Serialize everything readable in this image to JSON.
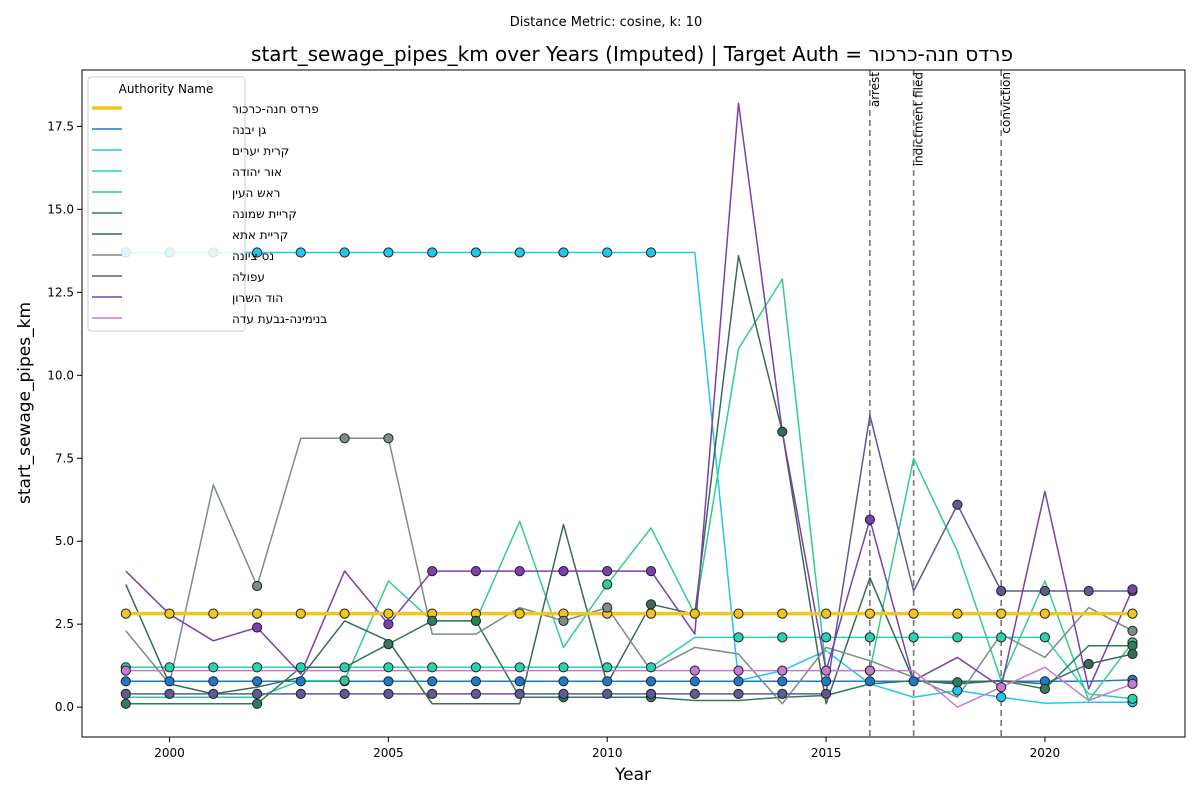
{
  "suptitle": "Distance Metric: cosine, k: 10",
  "chart_data": {
    "type": "line",
    "title": "start_sewage_pipes_km over Years (Imputed) | Target Auth = פרדס חנה-כרכור",
    "xlabel": "Year",
    "ylabel": "start_sewage_pipes_km",
    "xlim": [
      1998,
      2023.2
    ],
    "ylim": [
      -0.9,
      19.2
    ],
    "x_ticks": [
      2000,
      2005,
      2010,
      2015,
      2020
    ],
    "y_ticks": [
      0.0,
      2.5,
      5.0,
      7.5,
      10.0,
      12.5,
      15.0,
      17.5
    ],
    "y_tick_labels": [
      "0.0",
      "2.5",
      "5.0",
      "7.5",
      "10.0",
      "12.5",
      "15.0",
      "17.5"
    ],
    "grid": false,
    "legend_title": "Authority Name",
    "legend_position": "upper-left",
    "events": [
      {
        "year": 2016,
        "label": "arrest"
      },
      {
        "year": 2017,
        "label": "indictment filed"
      },
      {
        "year": 2019,
        "label": "conviction"
      }
    ],
    "x": [
      1999,
      2000,
      2001,
      2002,
      2003,
      2004,
      2005,
      2006,
      2007,
      2008,
      2009,
      2010,
      2011,
      2012,
      2013,
      2014,
      2015,
      2016,
      2017,
      2018,
      2019,
      2020,
      2021,
      2022
    ],
    "series": [
      {
        "name": "פרדס חנה-כרכור",
        "color": "#f2c61d",
        "width": 3.5,
        "target": true,
        "values": [
          2.82,
          2.82,
          2.82,
          2.82,
          2.82,
          2.82,
          2.82,
          2.82,
          2.82,
          2.82,
          2.82,
          2.82,
          2.82,
          2.82,
          2.82,
          2.82,
          2.82,
          2.82,
          2.82,
          2.82,
          2.82,
          2.82,
          2.82,
          2.82
        ],
        "markers": [
          1999,
          2000,
          2001,
          2002,
          2003,
          2004,
          2005,
          2006,
          2007,
          2008,
          2009,
          2010,
          2011,
          2012,
          2013,
          2014,
          2015,
          2016,
          2017,
          2018,
          2019,
          2020,
          2022
        ]
      },
      {
        "name": "גן יבנה",
        "color": "#1f78c8",
        "width": 1.5,
        "values": [
          0.78,
          0.78,
          0.78,
          0.78,
          0.78,
          0.78,
          0.78,
          0.78,
          0.78,
          0.78,
          0.78,
          0.78,
          0.78,
          0.78,
          0.78,
          0.78,
          0.78,
          0.78,
          0.78,
          0.78,
          0.78,
          0.78,
          0.78,
          0.82
        ],
        "markers": [
          1999,
          2000,
          2001,
          2002,
          2003,
          2004,
          2005,
          2006,
          2007,
          2008,
          2009,
          2010,
          2011,
          2012,
          2013,
          2014,
          2015,
          2016,
          2017,
          2020,
          2022
        ]
      },
      {
        "name": "קרית יערים",
        "color": "#22c7ef",
        "width": 1.5,
        "values": [
          13.7,
          13.7,
          13.7,
          13.7,
          13.7,
          13.7,
          13.7,
          13.7,
          13.7,
          13.7,
          13.7,
          13.7,
          13.7,
          13.7,
          0.8,
          1.1,
          1.7,
          0.7,
          0.3,
          0.5,
          0.3,
          0.12,
          0.15,
          0.15
        ],
        "markers": [
          1999,
          2000,
          2001,
          2002,
          2003,
          2004,
          2005,
          2006,
          2007,
          2008,
          2009,
          2010,
          2011,
          2018,
          2019,
          2022
        ]
      },
      {
        "name": "אור יהודה",
        "color": "#2bd1b3",
        "width": 1.5,
        "values": [
          1.2,
          1.2,
          1.2,
          1.2,
          1.2,
          1.2,
          1.2,
          1.2,
          1.2,
          1.2,
          1.2,
          1.2,
          1.2,
          2.1,
          2.1,
          2.1,
          2.1,
          2.1,
          2.1,
          2.1,
          2.1,
          2.1,
          0.4,
          0.25
        ],
        "markers": [
          1999,
          2000,
          2001,
          2002,
          2003,
          2004,
          2005,
          2006,
          2007,
          2008,
          2009,
          2010,
          2011,
          2013,
          2014,
          2015,
          2016,
          2017,
          2018,
          2019,
          2020,
          2022
        ]
      },
      {
        "name": "ראש העין",
        "color": "#33cc8c",
        "width": 1.5,
        "values": [
          0.3,
          0.3,
          0.3,
          0.3,
          0.8,
          0.8,
          3.8,
          2.6,
          2.6,
          5.6,
          1.8,
          3.7,
          5.4,
          2.8,
          10.8,
          12.9,
          1.1,
          1.1,
          7.5,
          4.7,
          0.8,
          3.8,
          0.2,
          1.95
        ],
        "markers": [
          2004,
          2010,
          2016,
          2022
        ]
      },
      {
        "name": "קריית שמונה",
        "color": "#2e7d5e",
        "width": 1.5,
        "values": [
          0.1,
          0.1,
          0.1,
          0.1,
          1.2,
          1.2,
          1.9,
          2.6,
          2.6,
          0.3,
          0.3,
          0.3,
          0.3,
          0.2,
          0.2,
          0.3,
          0.35,
          0.7,
          0.8,
          0.75,
          0.8,
          0.55,
          1.85,
          1.85
        ],
        "markers": [
          1999,
          2002,
          2005,
          2006,
          2007,
          2009,
          2011,
          2018,
          2020,
          2022
        ]
      },
      {
        "name": "קריית אתא",
        "color": "#3a6a55",
        "width": 1.5,
        "values": [
          3.7,
          0.7,
          0.4,
          0.6,
          0.9,
          2.6,
          2.0,
          0.1,
          0.1,
          0.1,
          5.5,
          0.7,
          3.1,
          2.8,
          13.6,
          8.3,
          0.1,
          3.9,
          0.8,
          0.7,
          0.8,
          0.7,
          1.3,
          1.6
        ],
        "markers": [
          2011,
          2014,
          2021,
          2022
        ]
      },
      {
        "name": "נס ציונה",
        "color": "#7c8c87",
        "width": 1.5,
        "values": [
          2.3,
          0.7,
          6.7,
          3.65,
          8.1,
          8.1,
          8.1,
          2.2,
          2.2,
          3.0,
          2.6,
          3.0,
          1.1,
          1.8,
          1.6,
          0.1,
          1.8,
          1.4,
          0.9,
          0.3,
          2.2,
          1.5,
          3.0,
          2.3
        ],
        "markers": [
          2002,
          2004,
          2005,
          2009,
          2010,
          2022
        ]
      },
      {
        "name": "עפולה",
        "color": "#5e5b94",
        "width": 1.5,
        "values": [
          0.4,
          0.4,
          0.4,
          0.4,
          0.4,
          0.4,
          0.4,
          0.4,
          0.4,
          0.4,
          0.4,
          0.4,
          0.4,
          0.4,
          0.4,
          0.4,
          0.4,
          8.8,
          3.5,
          6.1,
          3.5,
          3.5,
          3.5,
          3.5
        ],
        "markers": [
          1999,
          2000,
          2001,
          2002,
          2003,
          2004,
          2005,
          2006,
          2007,
          2008,
          2009,
          2010,
          2011,
          2012,
          2013,
          2014,
          2015,
          2018,
          2019,
          2020,
          2021,
          2022
        ]
      },
      {
        "name": "הוד השרון",
        "color": "#7b3fb0",
        "width": 1.5,
        "values": [
          4.1,
          2.8,
          2.0,
          2.4,
          1.0,
          4.1,
          2.5,
          4.1,
          4.1,
          4.1,
          4.1,
          4.1,
          4.1,
          2.2,
          18.2,
          8.3,
          1.1,
          5.65,
          0.8,
          1.5,
          0.6,
          6.5,
          0.55,
          3.55
        ],
        "markers": [
          2002,
          2005,
          2006,
          2007,
          2008,
          2009,
          2010,
          2011,
          2016,
          2022
        ]
      },
      {
        "name": "בנימינה-גבעת עדה",
        "color": "#c77ad4",
        "width": 1.5,
        "values": [
          1.1,
          1.1,
          1.1,
          1.1,
          1.1,
          1.1,
          1.1,
          1.1,
          1.1,
          1.1,
          1.1,
          1.1,
          1.1,
          1.1,
          1.1,
          1.1,
          1.1,
          1.1,
          1.1,
          0.0,
          0.6,
          1.2,
          0.2,
          0.7
        ],
        "markers": [
          1999,
          2012,
          2013,
          2014,
          2015,
          2016,
          2019,
          2022
        ]
      }
    ]
  }
}
